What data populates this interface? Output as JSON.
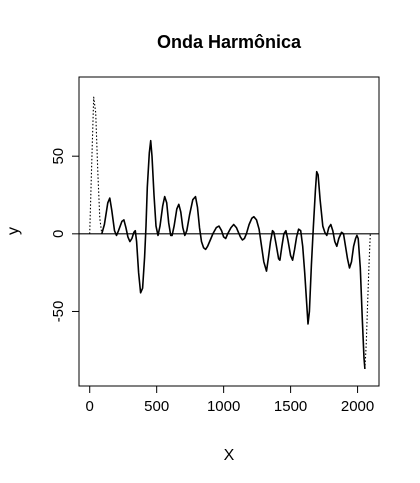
{
  "chart_data": {
    "type": "line",
    "title": "Onda Harmônica",
    "xlabel": "X",
    "ylabel": "y",
    "xlim": [
      -80,
      2160
    ],
    "ylim": [
      -98,
      101
    ],
    "x_ticks": [
      0,
      500,
      1000,
      1500,
      2000
    ],
    "y_ticks": [
      -50,
      0,
      50
    ],
    "hline": 0,
    "grid": false,
    "series": [
      {
        "style": "dotted",
        "points": [
          [
            0,
            0
          ],
          [
            15,
            45
          ],
          [
            30,
            88
          ],
          [
            45,
            78
          ],
          [
            60,
            40
          ],
          [
            75,
            10
          ],
          [
            90,
            0
          ]
        ]
      },
      {
        "style": "solid",
        "points": [
          [
            90,
            0
          ],
          [
            110,
            6
          ],
          [
            135,
            20
          ],
          [
            150,
            23
          ],
          [
            165,
            15
          ],
          [
            185,
            2
          ],
          [
            200,
            -1
          ],
          [
            215,
            2
          ],
          [
            240,
            8
          ],
          [
            255,
            9
          ],
          [
            270,
            4
          ],
          [
            285,
            -2
          ],
          [
            300,
            -5
          ],
          [
            315,
            -3
          ],
          [
            330,
            1
          ],
          [
            340,
            2
          ],
          [
            350,
            -5
          ],
          [
            365,
            -25
          ],
          [
            380,
            -38
          ],
          [
            395,
            -35
          ],
          [
            410,
            -15
          ],
          [
            420,
            5
          ],
          [
            430,
            30
          ],
          [
            445,
            52
          ],
          [
            455,
            60
          ],
          [
            465,
            50
          ],
          [
            480,
            25
          ],
          [
            495,
            5
          ],
          [
            510,
            -1
          ],
          [
            525,
            5
          ],
          [
            545,
            18
          ],
          [
            560,
            24
          ],
          [
            575,
            20
          ],
          [
            590,
            7
          ],
          [
            605,
            -1
          ],
          [
            615,
            -1
          ],
          [
            630,
            5
          ],
          [
            650,
            16
          ],
          [
            665,
            19
          ],
          [
            680,
            14
          ],
          [
            695,
            4
          ],
          [
            710,
            -1
          ],
          [
            725,
            2
          ],
          [
            745,
            12
          ],
          [
            770,
            22
          ],
          [
            790,
            24
          ],
          [
            805,
            17
          ],
          [
            820,
            4
          ],
          [
            835,
            -5
          ],
          [
            850,
            -9
          ],
          [
            865,
            -10
          ],
          [
            880,
            -8
          ],
          [
            900,
            -4
          ],
          [
            920,
            0
          ],
          [
            945,
            4
          ],
          [
            965,
            5
          ],
          [
            985,
            2
          ],
          [
            1000,
            -2
          ],
          [
            1015,
            -3
          ],
          [
            1030,
            0
          ],
          [
            1055,
            4
          ],
          [
            1075,
            6
          ],
          [
            1095,
            4
          ],
          [
            1110,
            1
          ],
          [
            1125,
            -2
          ],
          [
            1140,
            -4
          ],
          [
            1155,
            -3
          ],
          [
            1170,
            0
          ],
          [
            1190,
            6
          ],
          [
            1210,
            10
          ],
          [
            1225,
            11
          ],
          [
            1245,
            9
          ],
          [
            1265,
            3
          ],
          [
            1280,
            -6
          ],
          [
            1300,
            -18
          ],
          [
            1320,
            -24
          ],
          [
            1335,
            -15
          ],
          [
            1350,
            -5
          ],
          [
            1365,
            2
          ],
          [
            1375,
            1
          ],
          [
            1390,
            -6
          ],
          [
            1410,
            -16
          ],
          [
            1420,
            -17
          ],
          [
            1435,
            -8
          ],
          [
            1450,
            0
          ],
          [
            1465,
            2
          ],
          [
            1480,
            -4
          ],
          [
            1500,
            -14
          ],
          [
            1515,
            -17
          ],
          [
            1530,
            -10
          ],
          [
            1545,
            -2
          ],
          [
            1560,
            3
          ],
          [
            1575,
            2
          ],
          [
            1590,
            -8
          ],
          [
            1605,
            -25
          ],
          [
            1620,
            -45
          ],
          [
            1630,
            -58
          ],
          [
            1640,
            -50
          ],
          [
            1655,
            -20
          ],
          [
            1670,
            5
          ],
          [
            1685,
            28
          ],
          [
            1695,
            40
          ],
          [
            1705,
            38
          ],
          [
            1720,
            22
          ],
          [
            1740,
            5
          ],
          [
            1755,
            1
          ],
          [
            1770,
            -1
          ],
          [
            1785,
            4
          ],
          [
            1800,
            6
          ],
          [
            1815,
            2
          ],
          [
            1830,
            -5
          ],
          [
            1845,
            -8
          ],
          [
            1860,
            -3
          ],
          [
            1880,
            1
          ],
          [
            1895,
            0
          ],
          [
            1910,
            -8
          ],
          [
            1925,
            -16
          ],
          [
            1940,
            -22
          ],
          [
            1955,
            -18
          ],
          [
            1970,
            -8
          ],
          [
            1985,
            -3
          ],
          [
            1995,
            -1
          ],
          [
            2005,
            -3
          ],
          [
            2020,
            -22
          ],
          [
            2035,
            -55
          ],
          [
            2048,
            -80
          ],
          [
            2055,
            -87
          ]
        ]
      },
      {
        "style": "dotted",
        "points": [
          [
            2055,
            -87
          ],
          [
            2065,
            -70
          ],
          [
            2075,
            -45
          ],
          [
            2085,
            -20
          ],
          [
            2095,
            0
          ]
        ]
      }
    ]
  }
}
